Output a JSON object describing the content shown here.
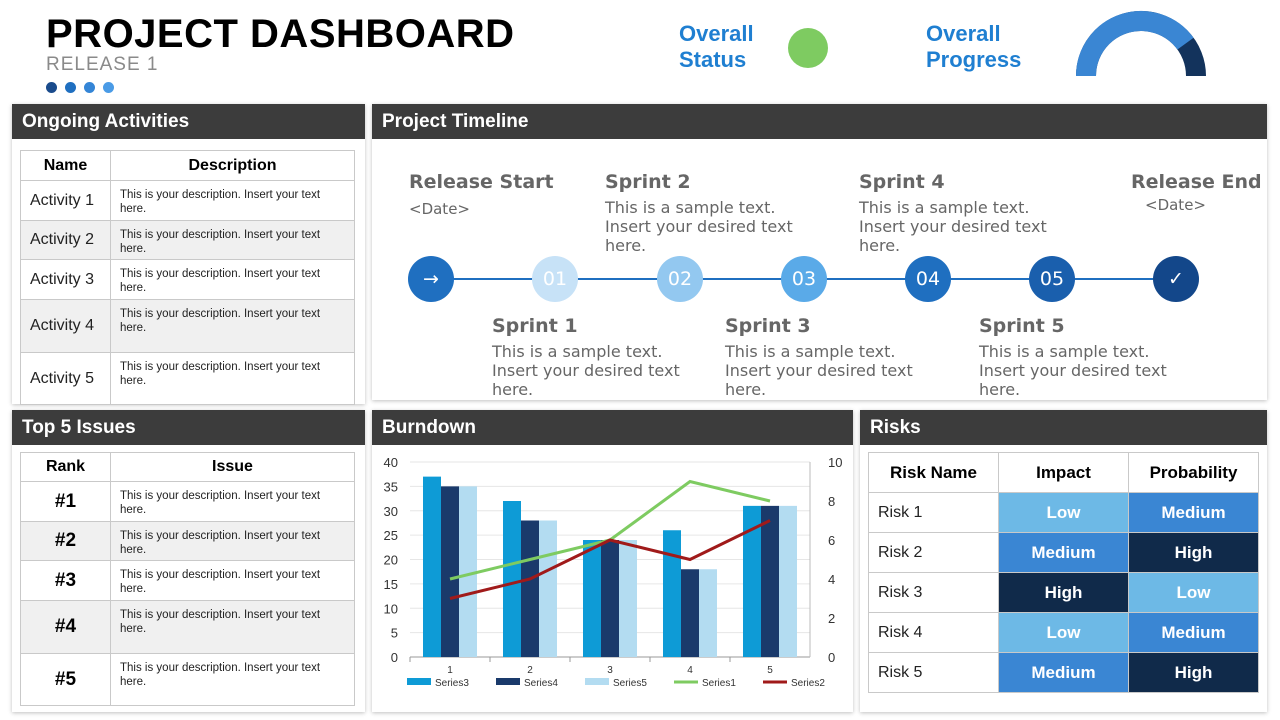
{
  "header": {
    "title": "PROJECT DASHBOARD",
    "subtitle": "RELEASE 1",
    "dots": [
      "#1a4b8c",
      "#1f6fc0",
      "#3485d6",
      "#4a9be6"
    ],
    "overall_status_label": "Overall\nStatus",
    "overall_status_color": "#7ecb61",
    "overall_progress_label": "Overall\nProgress",
    "overall_progress": 0.8
  },
  "activities": {
    "title": "Ongoing Activities",
    "columns": [
      "Name",
      "Description"
    ],
    "rows": [
      {
        "name": "Activity 1",
        "desc": "This is your description. Insert your text here."
      },
      {
        "name": "Activity 2",
        "desc": "This is your description. Insert your text here."
      },
      {
        "name": "Activity 3",
        "desc": "This is your description. Insert your text here."
      },
      {
        "name": "Activity 4",
        "desc": "This is your description. Insert your text here."
      },
      {
        "name": "Activity 5",
        "desc": "This is your description. Insert your text here."
      }
    ]
  },
  "timeline": {
    "title": "Project Timeline",
    "release_start": {
      "title": "Release Start",
      "date": "<Date>"
    },
    "release_end": {
      "title": "Release End",
      "date": "<Date>"
    },
    "sprints": [
      {
        "title": "Sprint 1",
        "text": "This is a sample text. Insert your desired text here."
      },
      {
        "title": "Sprint 2",
        "text": "This is a sample text. Insert your desired text here."
      },
      {
        "title": "Sprint 3",
        "text": "This is a sample text. Insert your desired text here."
      },
      {
        "title": "Sprint 4",
        "text": "This is a sample text. Insert your desired text here."
      },
      {
        "title": "Sprint 5",
        "text": "This is a sample text. Insert your desired text here."
      }
    ],
    "nodes": [
      {
        "label": "→",
        "color": "#1f6fc0",
        "icon": "arrow-right-icon"
      },
      {
        "label": "01",
        "color": "#c7e2f7"
      },
      {
        "label": "02",
        "color": "#93c8f0"
      },
      {
        "label": "03",
        "color": "#5aaae8"
      },
      {
        "label": "04",
        "color": "#1f6fc0"
      },
      {
        "label": "05",
        "color": "#1a5fad"
      },
      {
        "label": "✓",
        "color": "#13478a",
        "icon": "check-icon"
      }
    ]
  },
  "issues": {
    "title": "Top 5 Issues",
    "columns": [
      "Rank",
      "Issue"
    ],
    "rows": [
      {
        "rank": "#1",
        "desc": "This is your description. Insert your text here."
      },
      {
        "rank": "#2",
        "desc": "This is your description. Insert your text here."
      },
      {
        "rank": "#3",
        "desc": "This is your description. Insert your text here."
      },
      {
        "rank": "#4",
        "desc": "This is your description. Insert your text here."
      },
      {
        "rank": "#5",
        "desc": "This is your description. Insert your text here."
      }
    ]
  },
  "burndown": {
    "title": "Burndown"
  },
  "chart_data": {
    "type": "bar",
    "categories": [
      "1",
      "2",
      "3",
      "4",
      "5"
    ],
    "series": [
      {
        "name": "Series3",
        "kind": "bar",
        "axis": "left",
        "color": "#0e9bd6",
        "values": [
          37,
          32,
          24,
          26,
          31
        ]
      },
      {
        "name": "Series4",
        "kind": "bar",
        "axis": "left",
        "color": "#1a3a6b",
        "values": [
          35,
          28,
          24,
          18,
          31
        ]
      },
      {
        "name": "Series5",
        "kind": "bar",
        "axis": "left",
        "color": "#b3dcf1",
        "values": [
          35,
          28,
          24,
          18,
          31
        ]
      },
      {
        "name": "Series1",
        "kind": "line",
        "axis": "right",
        "color": "#7ecb61",
        "values": [
          4,
          5,
          6,
          9,
          8
        ]
      },
      {
        "name": "Series2",
        "kind": "line",
        "axis": "right",
        "color": "#a01a1a",
        "values": [
          3,
          4,
          6,
          5,
          7
        ]
      }
    ],
    "ylim": [
      0,
      40
    ],
    "yticks": [
      "0",
      "5",
      "10",
      "15",
      "20",
      "25",
      "30",
      "35",
      "40"
    ],
    "y2lim": [
      0,
      10
    ],
    "y2ticks": [
      "0",
      "2",
      "4",
      "6",
      "8",
      "10"
    ],
    "legend": "bottom"
  },
  "risks": {
    "title": "Risks",
    "columns": [
      "Risk Name",
      "Impact",
      "Probability"
    ],
    "rows": [
      {
        "name": "Risk 1",
        "impact": "Low",
        "impact_color": "#6db9e6",
        "prob": "Medium",
        "prob_color": "#3a86d3"
      },
      {
        "name": "Risk 2",
        "impact": "Medium",
        "impact_color": "#3a86d3",
        "prob": "High",
        "prob_color": "#102a4a"
      },
      {
        "name": "Risk 3",
        "impact": "High",
        "impact_color": "#102a4a",
        "prob": "Low",
        "prob_color": "#6db9e6"
      },
      {
        "name": "Risk 4",
        "impact": "Low",
        "impact_color": "#6db9e6",
        "prob": "Medium",
        "prob_color": "#3a86d3"
      },
      {
        "name": "Risk 5",
        "impact": "Medium",
        "impact_color": "#3a86d3",
        "prob": "High",
        "prob_color": "#102a4a"
      }
    ]
  }
}
